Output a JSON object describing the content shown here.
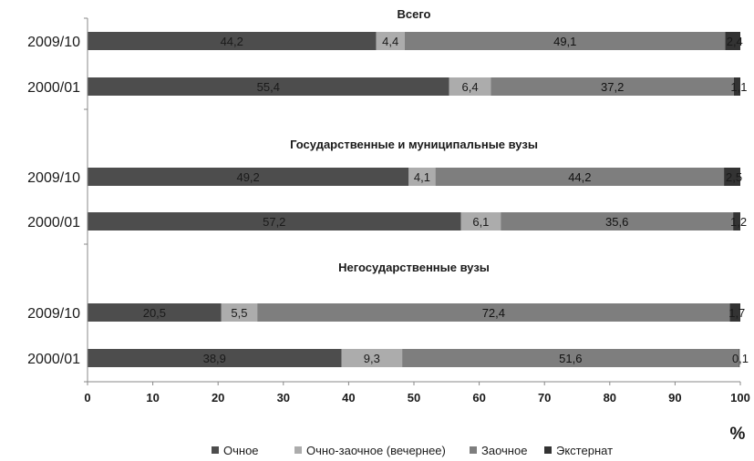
{
  "chart_data": {
    "type": "bar",
    "orientation": "horizontal",
    "stacked": true,
    "xlim": [
      0,
      100
    ],
    "x_ticks": [
      "0",
      "10",
      "20",
      "30",
      "40",
      "50",
      "60",
      "70",
      "80",
      "90",
      "100"
    ],
    "x_unit": "%",
    "grid": false,
    "legend_position": "bottom",
    "series": [
      {
        "name": "Очное",
        "color": "#4d4d4d"
      },
      {
        "name": "Очно-заочное (вечернее)",
        "color": "#acacac"
      },
      {
        "name": "Заочное",
        "color": "#7e7e7e"
      },
      {
        "name": "Экстернат",
        "color": "#333333"
      }
    ],
    "groups": [
      {
        "title": "Всего",
        "rows": [
          {
            "label": "2009/10",
            "values": [
              44.2,
              4.4,
              49.1,
              2.4
            ],
            "value_labels": [
              "44,2",
              "4,4",
              "49,1",
              "2,4"
            ]
          },
          {
            "label": "2000/01",
            "values": [
              55.4,
              6.4,
              37.2,
              1.1
            ],
            "value_labels": [
              "55,4",
              "6,4",
              "37,2",
              "1,1"
            ]
          }
        ]
      },
      {
        "title": "Государственные и муниципальные вузы",
        "rows": [
          {
            "label": "2009/10",
            "values": [
              49.2,
              4.1,
              44.2,
              2.5
            ],
            "value_labels": [
              "49,2",
              "4,1",
              "44,2",
              "2,5"
            ]
          },
          {
            "label": "2000/01",
            "values": [
              57.2,
              6.1,
              35.6,
              1.2
            ],
            "value_labels": [
              "57,2",
              "6,1",
              "35,6",
              "1,2"
            ]
          }
        ]
      },
      {
        "title": "Негосударственные вузы",
        "rows": [
          {
            "label": "2009/10",
            "values": [
              20.5,
              5.5,
              72.4,
              1.7
            ],
            "value_labels": [
              "20,5",
              "5,5",
              "72,4",
              "1,7"
            ]
          },
          {
            "label": "2000/01",
            "values": [
              38.9,
              9.3,
              51.6,
              0.1
            ],
            "value_labels": [
              "38,9",
              "9,3",
              "51,6",
              "0,1"
            ]
          }
        ]
      }
    ]
  }
}
